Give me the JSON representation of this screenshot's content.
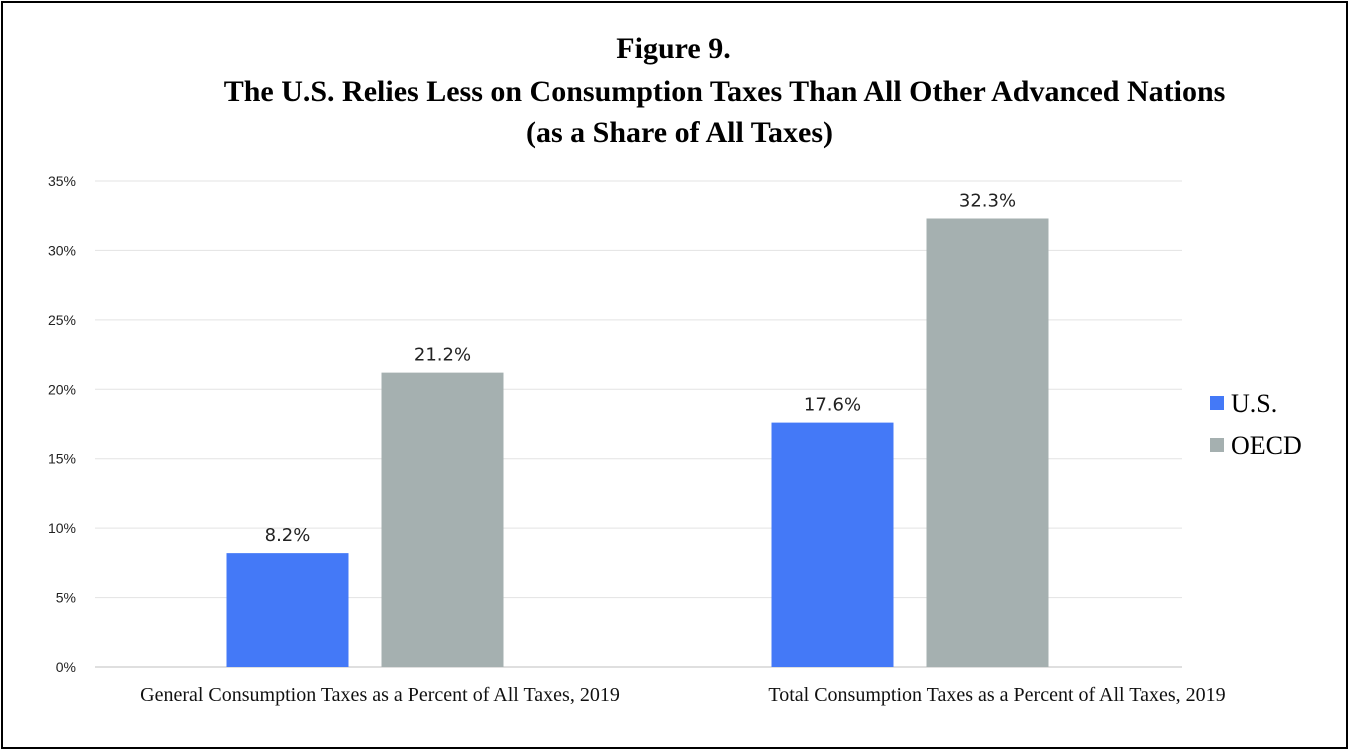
{
  "chart_data": {
    "type": "bar",
    "title": "Figure 9.",
    "subtitle": "The U.S. Relies Less on Consumption Taxes Than All Other Advanced Nations",
    "subtitle2": "(as a Share of All Taxes)",
    "categories": [
      "General Consumption Taxes as a Percent of All Taxes, 2019",
      "Total Consumption Taxes as a Percent of All Taxes, 2019"
    ],
    "series": [
      {
        "name": "U.S.",
        "values": [
          8.2,
          17.6
        ],
        "labels": [
          "8.2%",
          "17.6%"
        ],
        "color": "#4479f7"
      },
      {
        "name": "OECD",
        "values": [
          21.2,
          32.3
        ],
        "labels": [
          "21.2%",
          "32.3%"
        ],
        "color": "#a5b0b0"
      }
    ],
    "ylim": [
      0,
      35
    ],
    "yticks": [
      0,
      5,
      10,
      15,
      20,
      25,
      30,
      35
    ],
    "ytick_labels": [
      "0%",
      "5%",
      "10%",
      "15%",
      "20%",
      "25%",
      "30%",
      "35%"
    ],
    "xlabel": "",
    "ylabel": "",
    "grid": true,
    "legend": "right"
  }
}
